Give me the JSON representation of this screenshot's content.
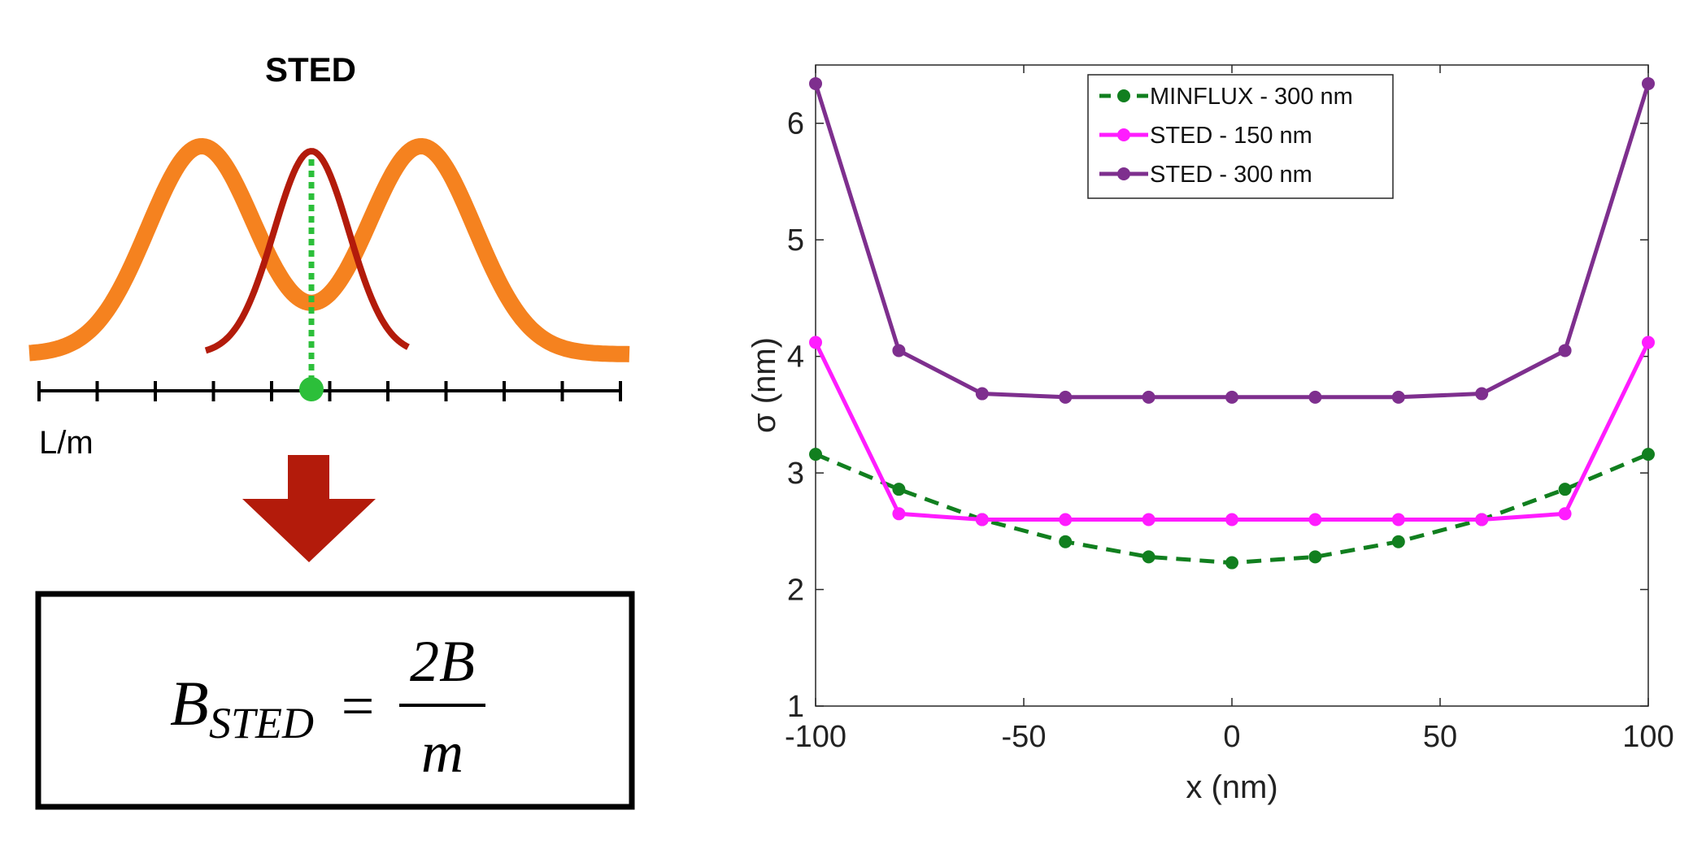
{
  "left_panel": {
    "title": "STED",
    "scale_label": "L/m",
    "formula": {
      "lhs_base": "B",
      "lhs_subscript": "STED",
      "equals": "=",
      "numerator": "2B",
      "denominator": "m"
    },
    "colors": {
      "donut": "#f5821f",
      "excitation": "#b31b0b",
      "center_line": "#2cbf3a",
      "arrow": "#b31b0b"
    },
    "scale_tick_count": 11
  },
  "chart_data": {
    "type": "line",
    "title": "",
    "xlabel": "x (nm)",
    "ylabel": "σ (nm)",
    "xlim": [
      -100,
      100
    ],
    "ylim": [
      1,
      6.5
    ],
    "x_ticks": [
      -100,
      -50,
      0,
      50,
      100
    ],
    "y_ticks": [
      1,
      2,
      3,
      4,
      5,
      6
    ],
    "grid": false,
    "legend_position": "top-center",
    "x": [
      -100,
      -80,
      -60,
      -40,
      -20,
      0,
      20,
      40,
      60,
      80,
      100
    ],
    "series": [
      {
        "name": "MINFLUX - 300 nm",
        "color": "#117f1f",
        "style": "dashed",
        "values": [
          3.16,
          2.86,
          2.6,
          2.41,
          2.28,
          2.23,
          2.28,
          2.41,
          2.6,
          2.86,
          3.16
        ]
      },
      {
        "name": "STED - 150 nm",
        "color": "#ff1cff",
        "style": "solid",
        "values": [
          4.12,
          2.65,
          2.6,
          2.6,
          2.6,
          2.6,
          2.6,
          2.6,
          2.6,
          2.65,
          4.12
        ]
      },
      {
        "name": "STED - 300 nm",
        "color": "#7e2f8e",
        "style": "solid",
        "values": [
          6.34,
          4.05,
          3.68,
          3.65,
          3.65,
          3.65,
          3.65,
          3.65,
          3.68,
          4.05,
          6.34
        ]
      }
    ]
  }
}
